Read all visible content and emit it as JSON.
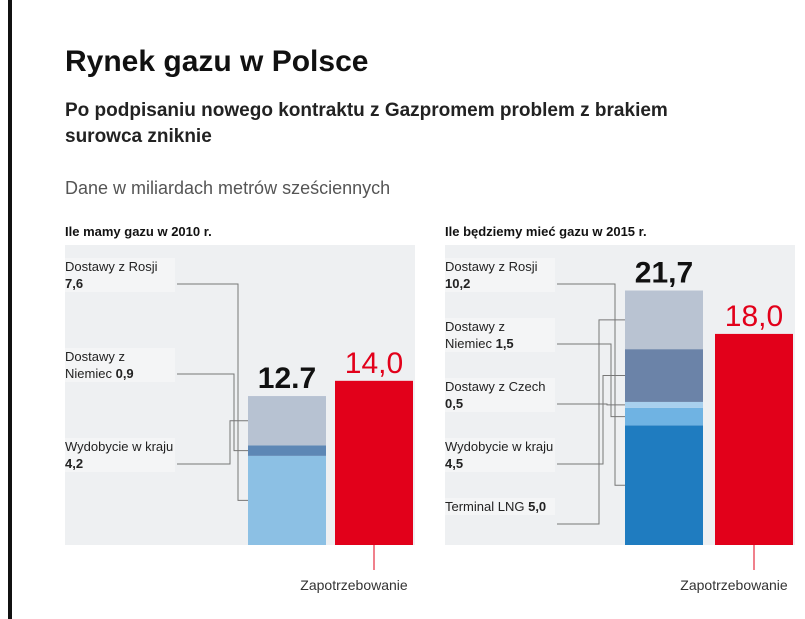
{
  "title": "Rynek gazu w Polsce",
  "subtitle": "Po podpisaniu nowego kontraktu z Gazpromem problem z brakiem surowca zniknie",
  "note": "Dane w miliardach metrów sześciennych",
  "chart_data": [
    {
      "type": "stacked-bar",
      "title": "Ile mamy gazu w 2010 r.",
      "ylim": [
        0,
        22
      ],
      "series": [
        {
          "name": "Dostawy z Rosji",
          "color": "#8cc0e4",
          "values": [
            7.6
          ],
          "value_labels": [
            "7,6"
          ]
        },
        {
          "name": "Dostawy z Niemiec",
          "color": "#5d87b5",
          "values": [
            0.9
          ],
          "value_labels": [
            "0,9"
          ]
        },
        {
          "name": "Wydobycie w kraju",
          "color": "#b7c2d2",
          "values": [
            4.2
          ],
          "value_labels": [
            "4,2"
          ]
        }
      ],
      "total": {
        "value": 12.7,
        "label": "12.7"
      },
      "demand": {
        "name": "Zapotrzebowanie",
        "value": 14.0,
        "label": "14,0",
        "color": "#e2001a"
      }
    },
    {
      "type": "stacked-bar",
      "title": "Ile będziemy mieć gazu w 2015 r.",
      "ylim": [
        0,
        22
      ],
      "series": [
        {
          "name": "Dostawy z Rosji",
          "color": "#1f7cc0",
          "values": [
            10.2
          ],
          "value_labels": [
            "10,2"
          ]
        },
        {
          "name": "Dostawy z Niemiec",
          "color": "#6fb3e3",
          "values": [
            1.5
          ],
          "value_labels": [
            "1,5"
          ]
        },
        {
          "name": "Dostawy z Czech",
          "color": "#a8d0ee",
          "values": [
            0.5
          ],
          "value_labels": [
            "0,5"
          ]
        },
        {
          "name": "Wydobycie w kraju",
          "color": "#6b83a8",
          "values": [
            4.5
          ],
          "value_labels": [
            "4,5"
          ]
        },
        {
          "name": "Terminal LNG",
          "color": "#b9c3d2",
          "values": [
            5.0
          ],
          "value_labels": [
            "5,0"
          ]
        }
      ],
      "total": {
        "value": 21.7,
        "label": "21,7"
      },
      "demand": {
        "name": "Zapotrzebowanie",
        "value": 18.0,
        "label": "18,0",
        "color": "#e2001a"
      }
    }
  ]
}
